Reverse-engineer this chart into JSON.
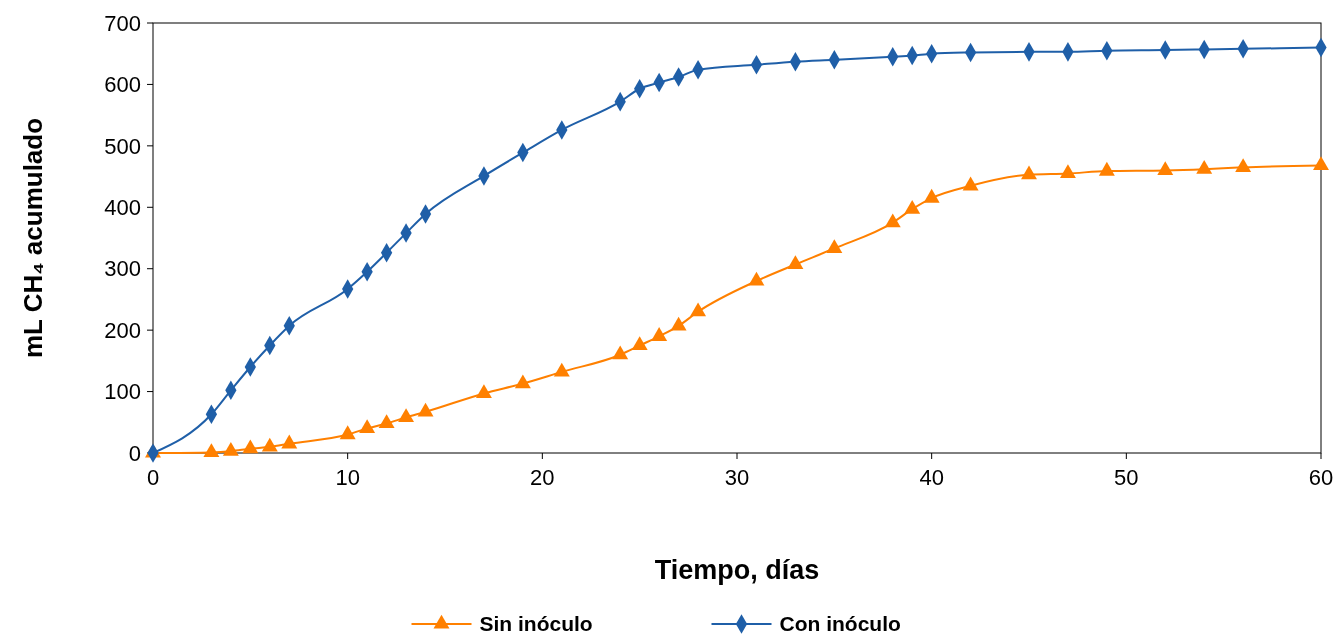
{
  "chart_data": {
    "type": "line",
    "xlabel": "Tiempo, días",
    "ylabel": "mL CH₄ acumulado",
    "x": [
      0,
      3,
      4,
      5,
      6,
      7,
      10,
      11,
      12,
      13,
      14,
      17,
      19,
      21,
      24,
      25,
      26,
      27,
      28,
      31,
      33,
      35,
      38,
      39,
      40,
      42,
      45,
      47,
      49,
      52,
      54,
      56,
      60
    ],
    "series": [
      {
        "name": "Sin inóculo",
        "color": "#ff8000",
        "marker": "triangle",
        "values": [
          0,
          1,
          3,
          7,
          10,
          15,
          30,
          40,
          48,
          58,
          67,
          97,
          113,
          132,
          160,
          175,
          190,
          207,
          230,
          280,
          307,
          333,
          375,
          397,
          415,
          435,
          453,
          455,
          459,
          460,
          462,
          465,
          468
        ]
      },
      {
        "name": "Con inóculo",
        "color": "#1f5fa8",
        "marker": "diamond",
        "values": [
          0,
          63,
          102,
          140,
          175,
          207,
          267,
          295,
          326,
          358,
          389,
          451,
          489,
          526,
          572,
          593,
          603,
          612,
          624,
          632,
          637,
          640,
          645,
          647,
          650,
          652,
          653,
          653,
          655,
          656,
          657,
          658,
          660
        ]
      }
    ],
    "xlim": [
      0,
      60
    ],
    "xticks": [
      0,
      10,
      20,
      30,
      40,
      50,
      60
    ],
    "ylim": [
      0,
      700
    ],
    "yticks": [
      0,
      100,
      200,
      300,
      400,
      500,
      600,
      700
    ],
    "grid": false,
    "legend": "bottom",
    "line_style": "solid"
  }
}
